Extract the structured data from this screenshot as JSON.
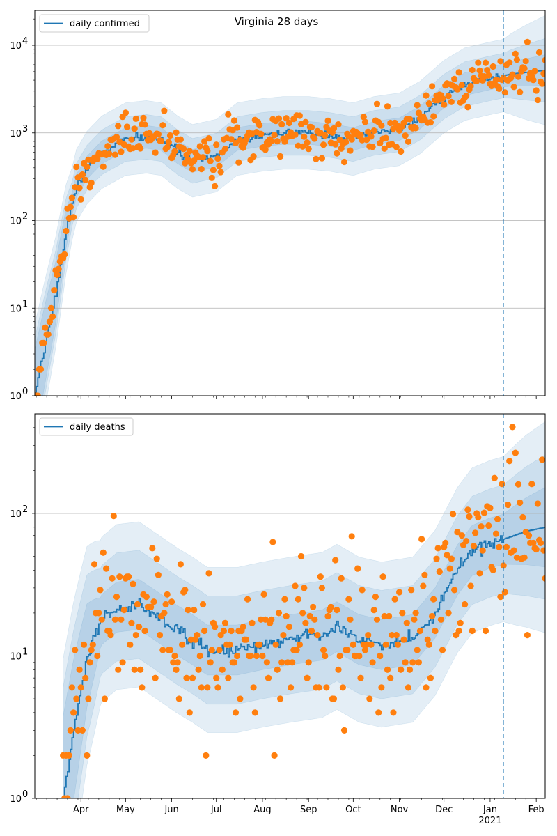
{
  "chart_data": [
    {
      "type": "scatter",
      "panel": "top",
      "title": "Virginia 28 days",
      "legend": {
        "label": "daily confirmed",
        "position": "top-left"
      },
      "yscale": "log",
      "ylim": [
        1,
        25000
      ],
      "xlim": [
        "2020-03-01",
        "2021-02-07"
      ],
      "grid": "y-major",
      "yticks": [
        {
          "value": 1,
          "base": "10",
          "exp": "0"
        },
        {
          "value": 10,
          "base": "10",
          "exp": "1"
        },
        {
          "value": 100,
          "base": "10",
          "exp": "2"
        },
        {
          "value": 1000,
          "base": "10",
          "exp": "3"
        },
        {
          "value": 10000,
          "base": "10",
          "exp": "4"
        }
      ],
      "forecast_start": "2021-01-10",
      "colors": {
        "line": "#1f77b4",
        "points": "#ff7f0e",
        "band": "#1f77b4",
        "vline": "#1f77b4"
      },
      "anchors": [
        [
          "2020-03-01",
          1
        ],
        [
          "2020-03-08",
          4
        ],
        [
          "2020-03-15",
          15
        ],
        [
          "2020-03-22",
          80
        ],
        [
          "2020-03-29",
          250
        ],
        [
          "2020-04-05",
          400
        ],
        [
          "2020-04-15",
          600
        ],
        [
          "2020-05-01",
          850
        ],
        [
          "2020-05-15",
          900
        ],
        [
          "2020-05-25",
          850
        ],
        [
          "2020-06-05",
          600
        ],
        [
          "2020-06-15",
          480
        ],
        [
          "2020-07-01",
          550
        ],
        [
          "2020-07-15",
          850
        ],
        [
          "2020-08-01",
          950
        ],
        [
          "2020-08-15",
          1000
        ],
        [
          "2020-09-01",
          1000
        ],
        [
          "2020-09-15",
          950
        ],
        [
          "2020-10-01",
          850
        ],
        [
          "2020-10-15",
          1000
        ],
        [
          "2020-11-01",
          1100
        ],
        [
          "2020-11-15",
          1500
        ],
        [
          "2020-12-01",
          2600
        ],
        [
          "2020-12-15",
          3600
        ],
        [
          "2021-01-01",
          4200
        ],
        [
          "2021-01-15",
          4700
        ],
        [
          "2021-02-07",
          5200
        ]
      ],
      "band_ratios": [
        1.35,
        1.8,
        2.6
      ],
      "forecast_band_ratios": [
        1.5,
        2.3,
        4.2
      ]
    },
    {
      "type": "scatter",
      "panel": "bottom",
      "title": "",
      "legend": {
        "label": "daily deaths",
        "position": "top-left"
      },
      "yscale": "log",
      "ylim": [
        1,
        500
      ],
      "xlim": [
        "2020-03-01",
        "2021-02-07"
      ],
      "grid": "y-major",
      "yticks": [
        {
          "value": 1,
          "base": "10",
          "exp": "0"
        },
        {
          "value": 10,
          "base": "10",
          "exp": "1"
        },
        {
          "value": 100,
          "base": "10",
          "exp": "2"
        }
      ],
      "xticks": [
        {
          "date": "2020-04-01",
          "label": "Apr"
        },
        {
          "date": "2020-05-01",
          "label": "May"
        },
        {
          "date": "2020-06-01",
          "label": "Jun"
        },
        {
          "date": "2020-07-01",
          "label": "Jul"
        },
        {
          "date": "2020-08-01",
          "label": "Aug"
        },
        {
          "date": "2020-09-01",
          "label": "Sep"
        },
        {
          "date": "2020-10-01",
          "label": "Oct"
        },
        {
          "date": "2020-11-01",
          "label": "Nov"
        },
        {
          "date": "2020-12-01",
          "label": "Dec"
        },
        {
          "date": "2021-01-01",
          "label": "Jan"
        },
        {
          "date": "2021-02-01",
          "label": "Feb"
        }
      ],
      "year_label": "2021",
      "forecast_start": "2021-01-10",
      "colors": {
        "line": "#1f77b4",
        "points": "#ff7f0e",
        "band": "#1f77b4",
        "vline": "#1f77b4"
      },
      "anchors": [
        [
          "2020-03-20",
          1
        ],
        [
          "2020-03-27",
          3
        ],
        [
          "2020-04-05",
          10
        ],
        [
          "2020-04-15",
          18
        ],
        [
          "2020-04-25",
          22
        ],
        [
          "2020-05-10",
          23
        ],
        [
          "2020-05-25",
          18
        ],
        [
          "2020-06-05",
          15
        ],
        [
          "2020-06-15",
          13
        ],
        [
          "2020-06-25",
          11
        ],
        [
          "2020-07-15",
          11
        ],
        [
          "2020-08-01",
          12
        ],
        [
          "2020-08-20",
          13
        ],
        [
          "2020-09-10",
          14
        ],
        [
          "2020-09-20",
          16
        ],
        [
          "2020-10-05",
          13
        ],
        [
          "2020-10-20",
          12
        ],
        [
          "2020-11-10",
          13
        ],
        [
          "2020-11-25",
          20
        ],
        [
          "2020-12-10",
          40
        ],
        [
          "2020-12-20",
          55
        ],
        [
          "2021-01-01",
          62
        ],
        [
          "2021-01-10",
          66
        ],
        [
          "2021-01-25",
          75
        ],
        [
          "2021-02-07",
          80
        ]
      ],
      "band_ratios": [
        1.5,
        2.4,
        3.8
      ],
      "forecast_band_ratios": [
        1.9,
        3.2,
        5.5
      ]
    }
  ]
}
